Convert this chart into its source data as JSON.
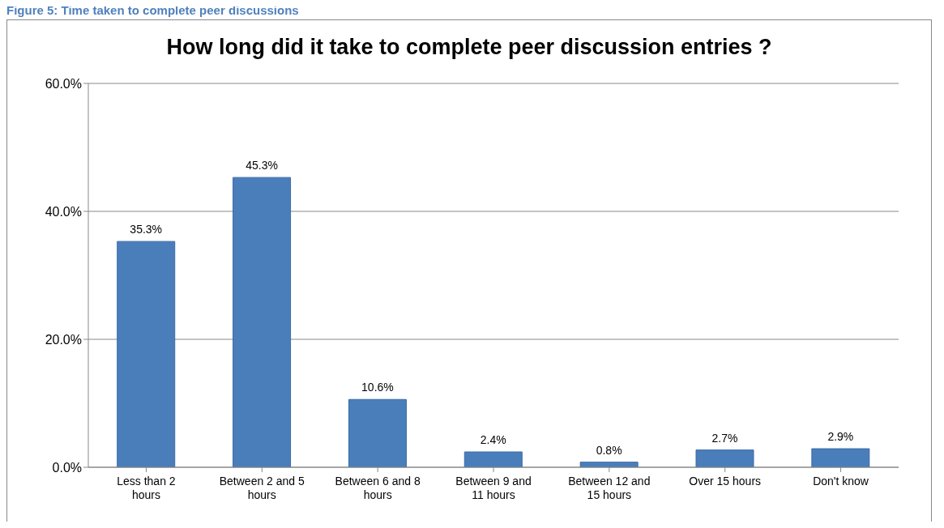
{
  "chart_data": {
    "type": "bar",
    "title": "How long did it take to complete peer discussion entries ?",
    "annotations": [
      "Figure 5: Time taken to complete peer discussions"
    ],
    "categories": [
      "Less than 2 hours",
      "Between 2 and 5 hours",
      "Between 6 and 8 hours",
      "Between 9 and 11 hours",
      "Between 12 and 15 hours",
      "Over 15 hours",
      "Don't know"
    ],
    "values": [
      35.3,
      45.3,
      10.6,
      2.4,
      0.8,
      2.7,
      2.9
    ],
    "value_labels": [
      "35.3%",
      "45.3%",
      "10.6%",
      "2.4%",
      "0.8%",
      "2.7%",
      "2.9%"
    ],
    "color": "#4a7ebb",
    "ylim": [
      0,
      60
    ],
    "yticks": [
      {
        "value": 0,
        "label": "0.0%"
      },
      {
        "value": 20,
        "label": "20.0%"
      },
      {
        "value": 40,
        "label": "40.0%"
      },
      {
        "value": 60,
        "label": "60.0%"
      }
    ],
    "grid": "y"
  }
}
